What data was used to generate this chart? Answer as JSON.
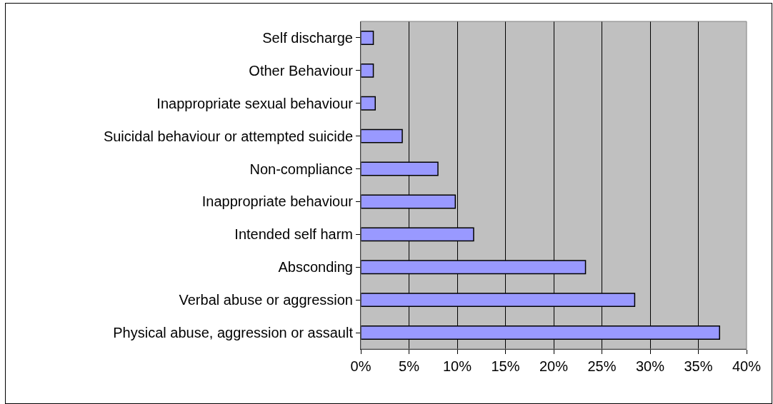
{
  "chart_data": {
    "type": "bar",
    "orientation": "horizontal",
    "categories": [
      "Self discharge",
      "Other Behaviour",
      "Inappropriate sexual behaviour",
      "Suicidal behaviour or attempted suicide",
      "Non-compliance",
      "Inappropriate behaviour",
      "Intended self harm",
      "Absconding",
      "Verbal abuse or aggression",
      "Physical abuse, aggression or assault"
    ],
    "values": [
      1.3,
      1.3,
      1.5,
      4.3,
      8.0,
      9.8,
      11.7,
      23.3,
      28.4,
      37.2
    ],
    "color": "#9999ff",
    "xlim": [
      0,
      40
    ],
    "xticks": [
      {
        "value": 0,
        "label": "0%"
      },
      {
        "value": 5,
        "label": "5%"
      },
      {
        "value": 10,
        "label": "10%"
      },
      {
        "value": 15,
        "label": "15%"
      },
      {
        "value": 20,
        "label": "20%"
      },
      {
        "value": 25,
        "label": "25%"
      },
      {
        "value": 30,
        "label": "30%"
      },
      {
        "value": 35,
        "label": "35%"
      },
      {
        "value": 40,
        "label": "40%"
      }
    ],
    "grid": "x"
  }
}
